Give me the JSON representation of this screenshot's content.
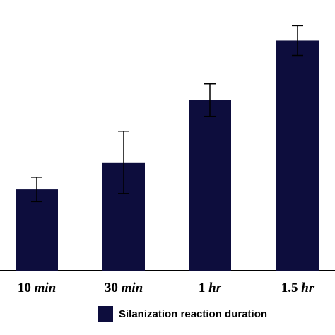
{
  "chart_data": {
    "type": "bar",
    "categories": [
      {
        "num": "10",
        "unit": "min"
      },
      {
        "num": "30",
        "unit": "min"
      },
      {
        "num": "1",
        "unit": "hr"
      },
      {
        "num": "1.5",
        "unit": "hr"
      }
    ],
    "series": [
      {
        "name": "Silanization reaction duration",
        "values": [
          30,
          40,
          63,
          85
        ],
        "errors": [
          4.5,
          11.5,
          6,
          5.5
        ]
      }
    ],
    "ylim": [
      0,
      100
    ],
    "yaxis_visible": false,
    "grid": false,
    "legend_position": "bottom",
    "colors": {
      "bar": "#0d0d3d",
      "axis": "#000000"
    }
  }
}
